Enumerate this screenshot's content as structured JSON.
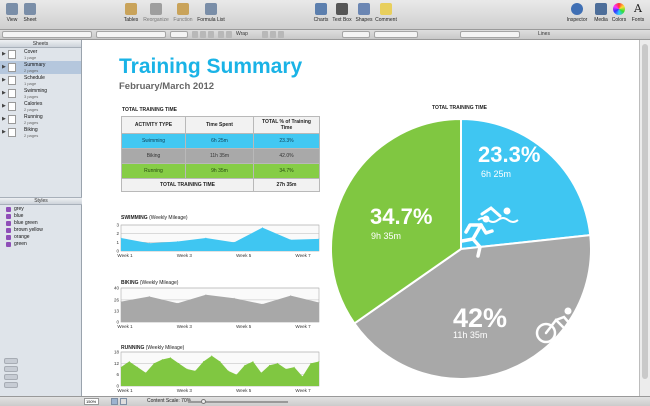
{
  "toolbar": {
    "items": [
      {
        "label": "View",
        "icon": "view-icon"
      },
      {
        "label": "Sheet",
        "icon": "sheet-icon"
      },
      {
        "label": "Tables",
        "icon": "tables-icon"
      },
      {
        "label": "Reorganize",
        "icon": "reorganize-icon"
      },
      {
        "label": "Function",
        "icon": "function-icon"
      },
      {
        "label": "Formula List",
        "icon": "formula-list-icon"
      },
      {
        "label": "Charts",
        "icon": "charts-icon"
      },
      {
        "label": "Text Box",
        "icon": "text-box-icon"
      },
      {
        "label": "Shapes",
        "icon": "shapes-icon"
      },
      {
        "label": "Comment",
        "icon": "comment-icon"
      },
      {
        "label": "Inspector",
        "icon": "inspector-icon"
      },
      {
        "label": "Media",
        "icon": "media-icon"
      },
      {
        "label": "Colors",
        "icon": "colors-icon"
      },
      {
        "label": "Fonts",
        "icon": "fonts-icon"
      }
    ]
  },
  "formatbar": {
    "wrap_label": "Wrap",
    "lines_label": "Lines"
  },
  "sidebar": {
    "sheets_header": "Sheets",
    "sheets": [
      {
        "name": "Cover",
        "pages": "1 page"
      },
      {
        "name": "Summary",
        "pages": "2 pages"
      },
      {
        "name": "Schedule",
        "pages": "1 page"
      },
      {
        "name": "Swimming",
        "pages": "3 pages"
      },
      {
        "name": "Calories",
        "pages": "2 pages"
      },
      {
        "name": "Running",
        "pages": "2 pages"
      },
      {
        "name": "Biking",
        "pages": "2 pages"
      }
    ],
    "styles_header": "Styles",
    "styles": [
      "grey",
      "blue",
      "blue green",
      "brown yellow",
      "orange",
      "green"
    ]
  },
  "status": {
    "zoom": "150%",
    "content_scale": "Content Scale: 70%"
  },
  "report": {
    "title": "Training Summary",
    "subtitle": "February/March 2012",
    "table_title": "TOTAL TRAINING TIME",
    "table_headers": [
      "ACTIVITY TYPE",
      "Time Spent",
      "TOTAL % of Training Time"
    ],
    "rows": [
      {
        "activity": "Swimming",
        "time": "6h 25m",
        "pct": "23.3%"
      },
      {
        "activity": "Biking",
        "time": "11h 35m",
        "pct": "42.0%"
      },
      {
        "activity": "Running",
        "time": "9h 35m",
        "pct": "34.7%"
      }
    ],
    "total_label": "TOTAL TRAINING TIME",
    "total_time": "27h 35m"
  },
  "chart_data": [
    {
      "type": "area",
      "title": "SWIMMING",
      "title_suffix": "(Weekly Mileage)",
      "x": [
        1,
        2,
        3,
        4,
        5,
        6,
        7,
        8
      ],
      "tick_labels": [
        "Week 1",
        "Week 3",
        "Week 5",
        "Week 7"
      ],
      "yticks": [
        0,
        1,
        2,
        3
      ],
      "values": [
        1.5,
        0.9,
        1.1,
        1.5,
        1.0,
        2.7,
        1.3,
        1.4
      ],
      "ylim": [
        0,
        3
      ],
      "color": "#3fc6f2"
    },
    {
      "type": "area",
      "title": "BIKING",
      "title_suffix": "(Weekly Mileage)",
      "x": [
        1,
        2,
        3,
        4,
        5,
        6,
        7,
        8
      ],
      "tick_labels": [
        "Week 1",
        "Week 3",
        "Week 5",
        "Week 7"
      ],
      "yticks": [
        0,
        13,
        26,
        40
      ],
      "values": [
        24,
        30,
        22,
        32,
        28,
        21,
        31,
        23
      ],
      "ylim": [
        0,
        40
      ],
      "color": "#a8a8a8"
    },
    {
      "type": "area",
      "title": "RUNNING",
      "title_suffix": "(Weekly Mileage)",
      "x": [
        1,
        2,
        3,
        4,
        5,
        6,
        7,
        8,
        9,
        10,
        11,
        12,
        13,
        14,
        15,
        16,
        17,
        18,
        19,
        20,
        21,
        22,
        23,
        24,
        25
      ],
      "tick_labels": [
        "Week 1",
        "Week 3",
        "Week 5",
        "Week 7"
      ],
      "yticks": [
        0,
        6,
        12,
        18
      ],
      "values": [
        10,
        13,
        10,
        7,
        12,
        14,
        15,
        12,
        9,
        8,
        13,
        16,
        13,
        8,
        6,
        11,
        13,
        7,
        11,
        12,
        9,
        10,
        5,
        12,
        13
      ],
      "ylim": [
        0,
        18
      ],
      "color": "#80c741"
    },
    {
      "type": "pie",
      "title": "TOTAL TRAINING TIME",
      "slices": [
        {
          "label": "Swimming",
          "value": 23.3,
          "pct_label": "23.3%",
          "time": "6h 25m",
          "color": "#3fc6f2",
          "icon": "swimmer-icon"
        },
        {
          "label": "Biking",
          "value": 42.0,
          "pct_label": "42%",
          "time": "11h 35m",
          "color": "#a8a8a8",
          "icon": "cyclist-icon"
        },
        {
          "label": "Running",
          "value": 34.7,
          "pct_label": "34.7%",
          "time": "9h 35m",
          "color": "#80c741",
          "icon": "runner-icon"
        }
      ]
    }
  ]
}
